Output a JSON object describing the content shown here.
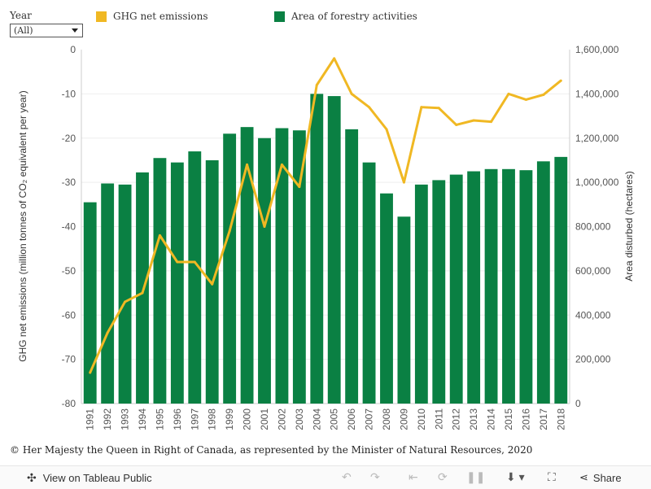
{
  "filter": {
    "label": "Year",
    "selected": "(All)"
  },
  "legend": [
    {
      "label": "GHG net emissions",
      "color": "#f0b823"
    },
    {
      "label": "Area of forestry activities",
      "color": "#0a8043"
    }
  ],
  "chart_data": {
    "type": "bar+line",
    "categories": [
      "1991",
      "1992",
      "1993",
      "1994",
      "1995",
      "1996",
      "1997",
      "1998",
      "1999",
      "2000",
      "2001",
      "2002",
      "2003",
      "2004",
      "2005",
      "2006",
      "2007",
      "2008",
      "2009",
      "2010",
      "2011",
      "2012",
      "2013",
      "2014",
      "2015",
      "2016",
      "2017",
      "2018"
    ],
    "series": [
      {
        "name": "Area of forestry activities",
        "type": "bar",
        "axis": "right",
        "color": "#0a8043",
        "values": [
          910000,
          995000,
          990000,
          1045000,
          1110000,
          1090000,
          1140000,
          1100000,
          1220000,
          1250000,
          1200000,
          1245000,
          1235000,
          1400000,
          1390000,
          1240000,
          1090000,
          950000,
          845000,
          990000,
          1010000,
          1035000,
          1050000,
          1060000,
          1060000,
          1055000,
          1095000,
          1115000
        ]
      },
      {
        "name": "GHG net emissions",
        "type": "line",
        "axis": "left",
        "color": "#f0b823",
        "values": [
          -73,
          -64,
          -57,
          -55,
          -42,
          -48,
          -48,
          -53,
          -41,
          -26,
          -40,
          -26,
          -31,
          -8,
          -2,
          -10,
          -13,
          -18,
          -30,
          -13,
          -13.2,
          -17,
          -16,
          -16.3,
          -10,
          -11.3,
          -10.2,
          -7
        ]
      }
    ],
    "left_axis": {
      "title": "GHG net emissions (million tonnes of CO₂ equivalent per year)",
      "min": -80,
      "max": 0,
      "ticks": [
        0,
        -10,
        -20,
        -30,
        -40,
        -50,
        -60,
        -70,
        -80
      ],
      "tick_labels": [
        "0",
        "-10",
        "-20",
        "-30",
        "-40",
        "-50",
        "-60",
        "-70",
        "-80"
      ]
    },
    "right_axis": {
      "title": "Area disturbed (hectares)",
      "min": 0,
      "max": 1600000,
      "ticks": [
        0,
        200000,
        400000,
        600000,
        800000,
        1000000,
        1200000,
        1400000,
        1600000
      ],
      "tick_labels": [
        "0",
        "200,000",
        "400,000",
        "600,000",
        "800,000",
        "1,000,000",
        "1,200,000",
        "1,400,000",
        "1,600,000"
      ]
    }
  },
  "footer": {
    "copyright": "© Her Majesty the Queen in Right of Canada, as represented by the Minister of Natural Resources, 2020"
  },
  "toolbar": {
    "view_label": "View on Tableau Public",
    "share_label": "Share"
  }
}
